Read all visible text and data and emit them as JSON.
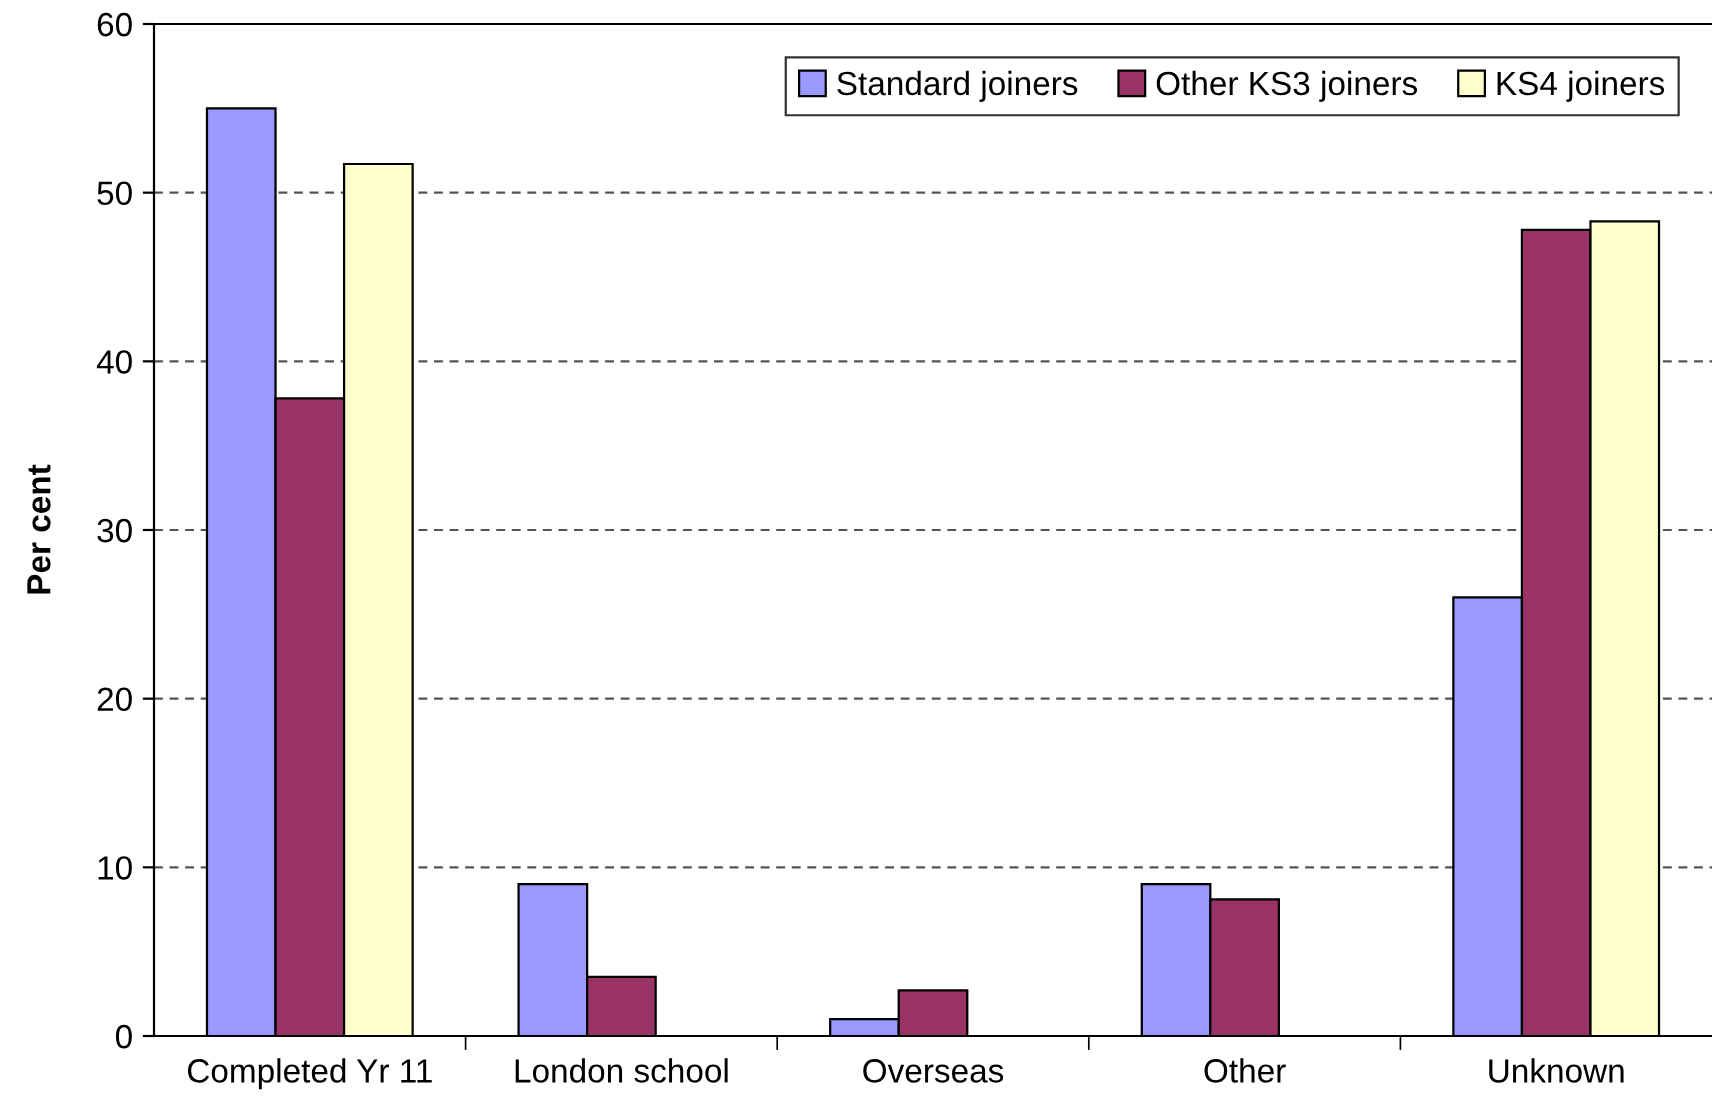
{
  "chart_data": {
    "type": "bar",
    "ylabel": "Per cent",
    "categories": [
      "Completed Yr 11",
      "London school",
      "Overseas",
      "Other",
      "Unknown"
    ],
    "series": [
      {
        "name": "Standard joiners",
        "color": "#9999ff",
        "values": [
          55,
          9,
          1,
          9,
          26
        ]
      },
      {
        "name": "Other KS3 joiners",
        "color": "#993366",
        "values": [
          37.8,
          3.5,
          2.7,
          8.1,
          47.8
        ]
      },
      {
        "name": "KS4 joiners",
        "color": "#ffffcc",
        "values": [
          51.7,
          null,
          null,
          null,
          48.3
        ]
      }
    ],
    "ylim": [
      0,
      60
    ],
    "yticks": [
      0,
      10,
      20,
      30,
      40,
      50,
      60
    ],
    "grid": "y",
    "legend": "top right"
  }
}
